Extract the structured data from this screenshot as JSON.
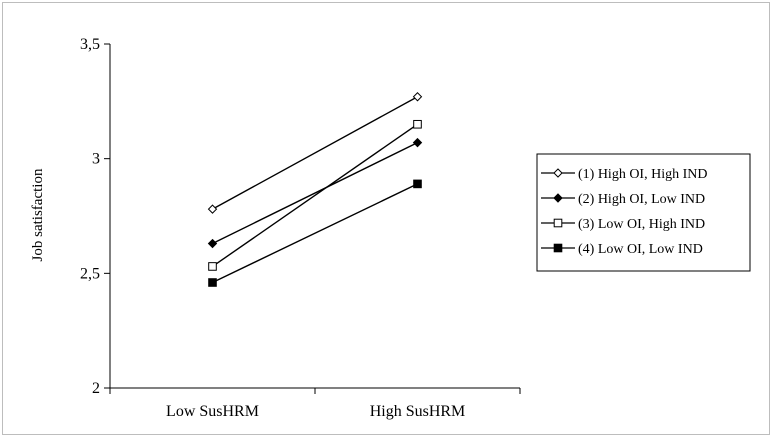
{
  "chart_data": {
    "type": "line",
    "title": "",
    "ylabel": "Job satisfaction",
    "xlabel": "",
    "categories": [
      "Low SusHRM",
      "High SusHRM"
    ],
    "ylim": [
      2,
      3.5
    ],
    "yticks": [
      2,
      2.5,
      3,
      3.5
    ],
    "ytick_labels": [
      "2",
      "2,5",
      "3",
      "3,5"
    ],
    "grid": false,
    "legend_position": "right",
    "series": [
      {
        "name": "(1) High OI, High IND",
        "marker": "diamond-open",
        "values": [
          2.78,
          3.27
        ]
      },
      {
        "name": "(2) High OI, Low IND",
        "marker": "diamond-filled",
        "values": [
          2.63,
          3.07
        ]
      },
      {
        "name": "(3) Low OI, High IND",
        "marker": "square-open",
        "values": [
          2.53,
          3.15
        ]
      },
      {
        "name": "(4) Low OI, Low IND",
        "marker": "square-filled",
        "values": [
          2.46,
          2.89
        ]
      }
    ],
    "line_color": "#000000"
  }
}
